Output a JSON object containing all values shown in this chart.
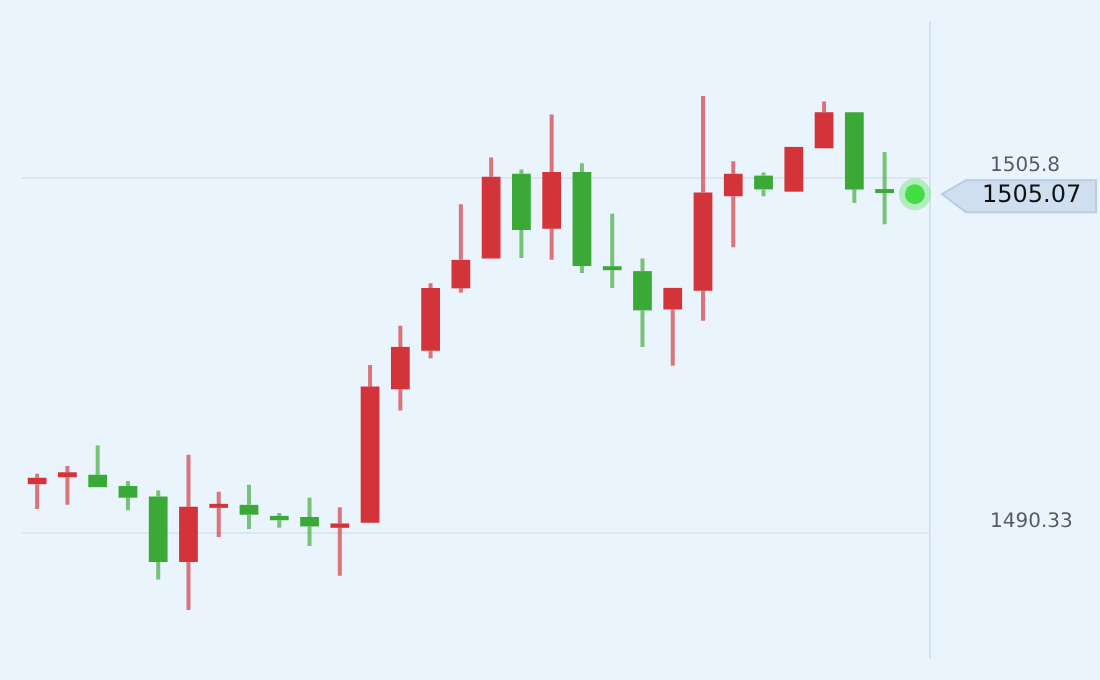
{
  "chart_data": {
    "type": "candlestick",
    "categories": [
      null,
      null,
      null,
      null,
      null,
      null,
      null,
      null,
      null,
      null,
      null,
      null,
      null,
      null,
      null,
      null,
      null,
      null,
      null,
      null,
      null,
      null,
      null,
      null,
      null,
      null,
      null,
      null,
      null,
      null
    ],
    "ohlc": [
      [
        1492.47,
        1492.93,
        1491.39,
        1492.75
      ],
      [
        1492.77,
        1493.26,
        1491.57,
        1492.99
      ],
      [
        1492.88,
        1494.16,
        1492.34,
        1492.34
      ],
      [
        1492.39,
        1492.61,
        1491.33,
        1491.88
      ],
      [
        1491.93,
        1492.2,
        1488.32,
        1489.08
      ],
      [
        1489.08,
        1493.75,
        1486.99,
        1491.49
      ],
      [
        1491.44,
        1492.14,
        1490.17,
        1491.61
      ],
      [
        1491.57,
        1492.45,
        1490.52,
        1491.14
      ],
      [
        1491.09,
        1491.22,
        1490.57,
        1490.9
      ],
      [
        1491.04,
        1491.88,
        1489.78,
        1490.63
      ],
      [
        1490.57,
        1491.47,
        1488.48,
        1490.76
      ],
      [
        1490.79,
        1497.66,
        1490.79,
        1496.72
      ],
      [
        1496.6,
        1499.37,
        1495.68,
        1498.45
      ],
      [
        1498.28,
        1501.22,
        1497.96,
        1501.02
      ],
      [
        1501.0,
        1504.66,
        1500.81,
        1502.24
      ],
      [
        1502.3,
        1506.7,
        1502.3,
        1505.86
      ],
      [
        1505.99,
        1506.18,
        1502.32,
        1503.54
      ],
      [
        1503.6,
        1508.57,
        1502.24,
        1506.07
      ],
      [
        1506.07,
        1506.45,
        1501.67,
        1501.97
      ],
      [
        1501.95,
        1504.25,
        1501.02,
        1501.79
      ],
      [
        1501.75,
        1502.3,
        1498.45,
        1500.04
      ],
      [
        1500.08,
        1501.02,
        1497.63,
        1501.02
      ],
      [
        1500.89,
        1509.38,
        1499.59,
        1505.17
      ],
      [
        1505.01,
        1506.53,
        1502.79,
        1505.99
      ],
      [
        1505.91,
        1506.04,
        1505.01,
        1505.31
      ],
      [
        1505.21,
        1507.16,
        1505.21,
        1507.16
      ],
      [
        1507.1,
        1509.14,
        1507.1,
        1508.67
      ],
      [
        1508.67,
        1508.67,
        1504.72,
        1505.31
      ],
      [
        1505.29,
        1506.94,
        1503.79,
        1505.15
      ],
      null
    ],
    "colors": [
      "#d2343a",
      "#d2343a",
      "#3aa936",
      "#3aa936",
      "#3aa936",
      "#d2343a",
      "#d2343a",
      "#3aa936",
      "#3aa936",
      "#3aa936",
      "#d2343a",
      "#d2343a",
      "#d2343a",
      "#d2343a",
      "#d2343a",
      "#d2343a",
      "#3aa936",
      "#d2343a",
      "#3aa936",
      "#3aa936",
      "#3aa936",
      "#d2343a",
      "#d2343a",
      "#d2343a",
      "#3aa936",
      "#d2343a",
      "#d2343a",
      "#3aa936",
      "#3aa936",
      null
    ],
    "series": [
      {
        "type": "scatter",
        "color": "#44dd44",
        "values": [
          null,
          null,
          null,
          null,
          null,
          null,
          null,
          null,
          null,
          null,
          null,
          null,
          null,
          null,
          null,
          null,
          null,
          null,
          null,
          null,
          null,
          null,
          null,
          null,
          null,
          null,
          null,
          null,
          null,
          1505.1
        ]
      }
    ],
    "annotations": [
      "1505.07"
    ],
    "ylim": [
      1484.9,
      1512.6
    ],
    "yticks": [
      1505.8,
      1490.33
    ],
    "grid": "y"
  }
}
